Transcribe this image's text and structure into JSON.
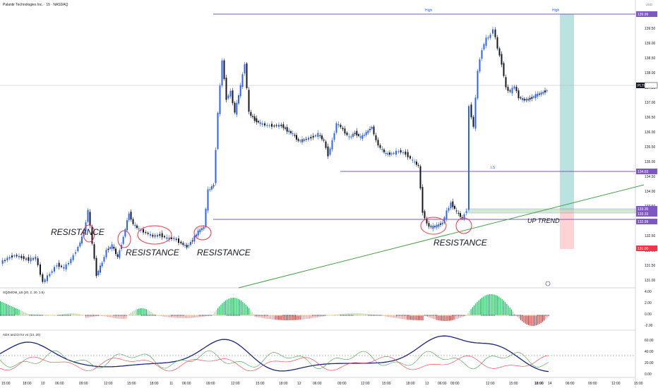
{
  "header": {
    "title": "Palantir Technologies Inc. · 15 · NASDAQ",
    "currency": "USD"
  },
  "indicators": {
    "squeeze_label": "SQZMOM_LB (20, 2, 20, 1.5)",
    "adx_label": "ADX and DI for v4 (14, 20)"
  },
  "price_axis": {
    "labels": [
      "139.50",
      "139.00",
      "138.50",
      "138.00",
      "137.50",
      "137.00",
      "136.50",
      "136.00",
      "135.50",
      "135.00",
      "134.50",
      "134.00",
      "133.50",
      "133.00",
      "132.50",
      "132.00",
      "131.50",
      "131.00"
    ]
  },
  "squeeze_axis": {
    "labels": [
      "4.00",
      "2.00",
      "0.00",
      "-2.00"
    ]
  },
  "adx_axis": {
    "labels": [
      "60.00",
      "40.00",
      "20.00",
      "0.00"
    ]
  },
  "time_axis": {
    "labels": [
      "15:00",
      "18:00",
      "10",
      "06:00",
      "09:00",
      "12:00",
      "15:00",
      "18:00",
      "11",
      "06:00",
      "09:00",
      "12:00",
      "15:00",
      "18:00",
      "12",
      "06:00",
      "09:00",
      "12:00",
      "15:00",
      "18:00",
      "13",
      "06:00",
      "09:00",
      "12:00",
      "15:00",
      "18:00",
      "14",
      "06:00",
      "09:00",
      "12:00",
      "15:00"
    ],
    "bold_index": 25
  },
  "price_tags": [
    {
      "label": "139.99",
      "color": "#7e57c2"
    },
    {
      "label": "PLTR",
      "color": "#131722"
    },
    {
      "label": "137.59",
      "color": "#ffffff"
    },
    {
      "label": "134.63",
      "color": "#7e57c2"
    },
    {
      "label": "133.35",
      "color": "#7e57c2"
    },
    {
      "label": "133.33",
      "color": "#7e57c2"
    },
    {
      "label": "132.99",
      "color": "#7e57c2"
    },
    {
      "label": "131.00",
      "color": "#f23645"
    }
  ],
  "annotations": {
    "resistance_1": "RESISTANCE",
    "resistance_2": "RESISTANCE",
    "resistance_3": "RESISTANCE",
    "resistance_4": "RESISTANCE",
    "up_trend": "UP TREND",
    "high_left": "High",
    "high_right": "High",
    "ls": "LS"
  },
  "colors": {
    "up": "#2962ff",
    "down": "#131722",
    "level": "#7e57c2",
    "trend": "#43a047",
    "target": "#b2dfdb",
    "stop": "#ffcdd2"
  }
}
